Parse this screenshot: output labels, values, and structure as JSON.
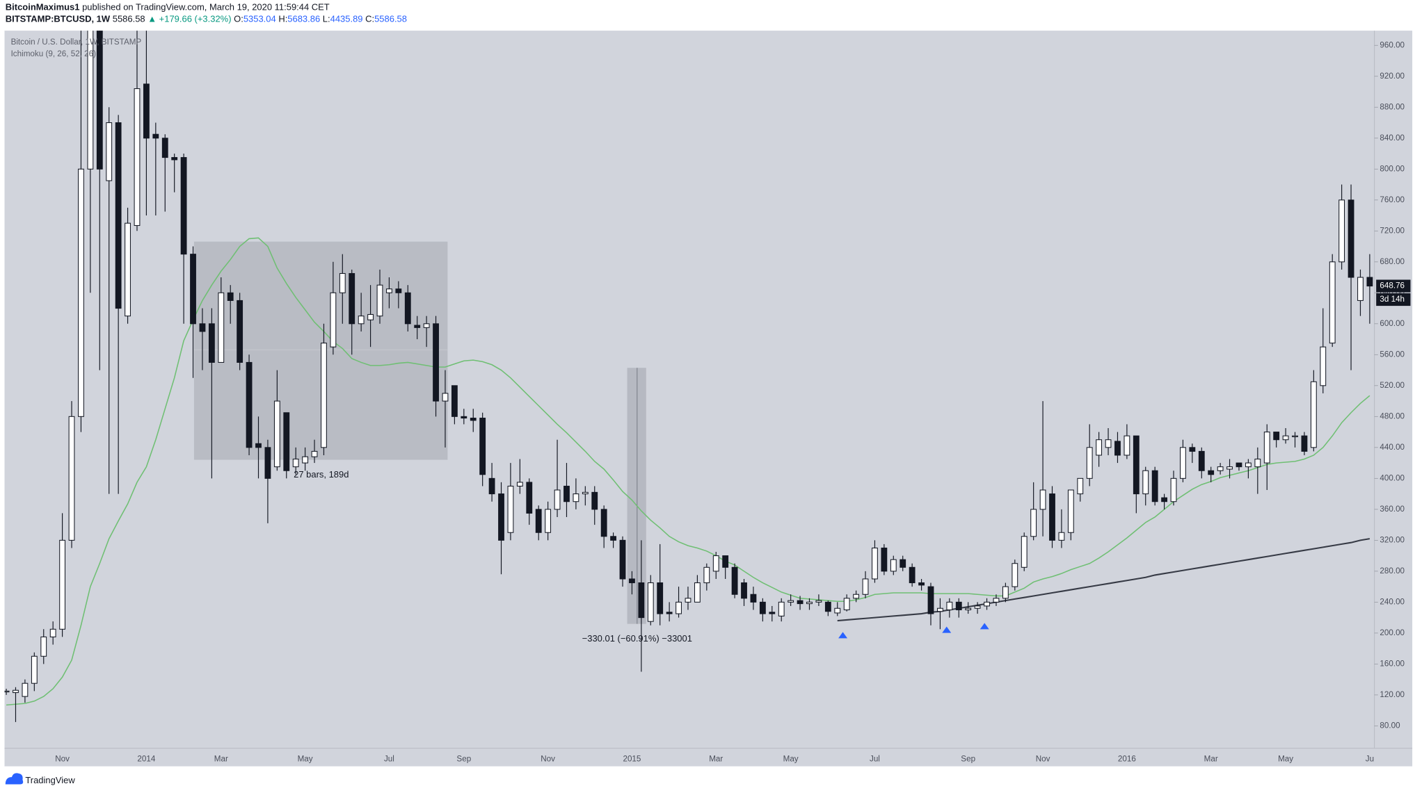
{
  "header": {
    "author": "BitcoinMaximus1",
    "published": "published on TradingView.com, March 19, 2020 11:59:44 CET",
    "symbol": "BITSTAMP:BTCUSD, 1W",
    "last": "5586.58",
    "change": "▲ +179.66 (+3.32%)",
    "o_label": "O:",
    "o": "5353.04",
    "h_label": "H:",
    "h": "5683.86",
    "l_label": "L:",
    "l": "4435.89",
    "c_label": "C:",
    "c": "5586.58"
  },
  "footer": {
    "brand": "TradingView"
  },
  "chart_data": {
    "type": "candlestick",
    "title": "Bitcoin / U.S. Dollar, 1W, BITSTAMP",
    "subtitle": "Ichimoku (9, 26, 52, 26)",
    "annotations": [
      "27 bars, 189d",
      "−330.01 (−60.91%) −33001"
    ],
    "countdown": "3d 14h",
    "up_color": "#ffffff",
    "down_color": "#131722",
    "categories": [
      null,
      null,
      null,
      null,
      null,
      null,
      "Nov",
      null,
      null,
      null,
      null,
      null,
      null,
      null,
      null,
      "2014",
      null,
      null,
      null,
      null,
      null,
      null,
      null,
      "Mar",
      null,
      null,
      null,
      null,
      null,
      null,
      null,
      null,
      "May",
      null,
      null,
      null,
      null,
      null,
      null,
      null,
      null,
      "Jul",
      null,
      null,
      null,
      null,
      null,
      null,
      null,
      "Sep",
      null,
      null,
      null,
      null,
      null,
      null,
      null,
      null,
      "Nov",
      null,
      null,
      null,
      null,
      null,
      null,
      null,
      null,
      "2015",
      null,
      null,
      null,
      null,
      null,
      null,
      null,
      null,
      "Mar",
      null,
      null,
      null,
      null,
      null,
      null,
      null,
      "May",
      null,
      null,
      null,
      null,
      null,
      null,
      null,
      null,
      "Jul",
      null,
      null,
      null,
      null,
      null,
      null,
      null,
      null,
      null,
      "Sep",
      null,
      null,
      null,
      null,
      null,
      null,
      null,
      "Nov",
      null,
      null,
      null,
      null,
      null,
      null,
      null,
      null,
      "2016",
      null,
      null,
      null,
      null,
      null,
      null,
      null,
      null,
      "Mar",
      null,
      null,
      null,
      null,
      null,
      null,
      null,
      "May",
      null,
      null,
      null,
      null,
      null,
      null,
      null,
      null,
      "Ju"
    ],
    "open": [
      125,
      123,
      118,
      135,
      170,
      195,
      205,
      320,
      480,
      800,
      1000,
      785,
      860,
      610,
      727,
      910,
      845,
      840,
      815,
      815,
      690,
      600,
      600,
      550,
      640,
      630,
      550,
      445,
      440,
      415,
      485,
      415,
      420,
      428,
      440,
      570,
      640,
      665,
      600,
      605,
      610,
      640,
      645,
      640,
      598,
      595,
      600,
      500,
      520,
      480,
      478,
      478,
      400,
      380,
      330,
      390,
      395,
      360,
      330,
      360,
      390,
      370,
      380,
      382,
      360,
      325,
      320,
      270,
      265,
      215,
      265,
      227,
      225,
      240,
      240,
      265,
      280,
      300,
      285,
      265,
      250,
      240,
      227,
      222,
      240,
      242,
      238,
      240,
      240,
      226,
      230,
      245,
      250,
      270,
      310,
      280,
      295,
      285,
      265,
      260,
      228,
      230,
      240,
      230,
      232,
      235,
      240,
      245,
      260,
      285,
      325,
      360,
      380,
      320,
      330,
      380,
      400,
      430,
      440,
      448,
      430,
      455,
      380,
      410,
      375,
      370,
      400,
      440,
      435,
      410,
      410,
      412,
      420,
      415,
      415,
      420,
      460,
      450,
      455,
      455,
      440,
      520,
      575,
      680,
      760,
      630,
      660
    ],
    "high": [
      128,
      130,
      140,
      175,
      205,
      215,
      355,
      500,
      1000,
      1150,
      1150,
      880,
      870,
      750,
      990,
      1100,
      860,
      845,
      820,
      820,
      700,
      620,
      620,
      660,
      650,
      640,
      560,
      480,
      450,
      540,
      485,
      440,
      440,
      450,
      600,
      680,
      690,
      670,
      640,
      650,
      670,
      660,
      655,
      650,
      610,
      610,
      610,
      540,
      520,
      490,
      490,
      485,
      420,
      395,
      420,
      425,
      400,
      365,
      370,
      450,
      420,
      400,
      390,
      390,
      365,
      330,
      325,
      280,
      320,
      275,
      315,
      240,
      260,
      260,
      275,
      290,
      305,
      300,
      290,
      270,
      260,
      245,
      235,
      245,
      250,
      248,
      245,
      250,
      242,
      240,
      250,
      255,
      280,
      320,
      315,
      300,
      300,
      290,
      270,
      265,
      245,
      245,
      245,
      240,
      240,
      245,
      250,
      265,
      295,
      330,
      395,
      500,
      390,
      360,
      385,
      400,
      470,
      460,
      465,
      460,
      470,
      455,
      415,
      415,
      380,
      410,
      450,
      445,
      440,
      415,
      420,
      425,
      420,
      425,
      440,
      470,
      460,
      465,
      460,
      460,
      540,
      620,
      690,
      780,
      780,
      670,
      690
    ],
    "low": [
      120,
      85,
      110,
      125,
      160,
      185,
      195,
      310,
      460,
      640,
      540,
      380,
      380,
      600,
      720,
      740,
      740,
      745,
      770,
      600,
      530,
      540,
      400,
      550,
      600,
      540,
      430,
      400,
      342,
      410,
      400,
      405,
      410,
      420,
      430,
      560,
      600,
      560,
      590,
      570,
      600,
      620,
      620,
      590,
      580,
      570,
      480,
      440,
      470,
      470,
      460,
      390,
      370,
      276,
      320,
      380,
      340,
      320,
      320,
      350,
      350,
      360,
      365,
      340,
      310,
      310,
      260,
      250,
      150,
      210,
      210,
      215,
      220,
      230,
      240,
      255,
      270,
      270,
      245,
      235,
      230,
      215,
      215,
      215,
      235,
      230,
      230,
      235,
      222,
      222,
      228,
      240,
      245,
      265,
      275,
      275,
      280,
      260,
      255,
      210,
      205,
      220,
      220,
      225,
      225,
      230,
      235,
      240,
      255,
      280,
      320,
      325,
      310,
      310,
      320,
      370,
      390,
      415,
      430,
      420,
      425,
      355,
      365,
      365,
      360,
      365,
      395,
      420,
      400,
      395,
      405,
      400,
      410,
      400,
      380,
      385,
      440,
      445,
      440,
      430,
      435,
      510,
      570,
      670,
      540,
      610,
      600
    ],
    "close": [
      125,
      126,
      135,
      170,
      195,
      205,
      320,
      480,
      800,
      980,
      800,
      860,
      620,
      730,
      904,
      840,
      840,
      815,
      812,
      690,
      600,
      590,
      550,
      640,
      630,
      550,
      440,
      440,
      400,
      500,
      410,
      425,
      428,
      435,
      575,
      640,
      665,
      600,
      610,
      612,
      650,
      645,
      640,
      600,
      595,
      600,
      500,
      510,
      480,
      478,
      475,
      405,
      380,
      320,
      390,
      395,
      355,
      330,
      360,
      385,
      370,
      380,
      382,
      360,
      325,
      320,
      270,
      265,
      220,
      265,
      225,
      225,
      240,
      245,
      265,
      285,
      300,
      285,
      250,
      245,
      240,
      225,
      225,
      240,
      242,
      238,
      240,
      242,
      228,
      232,
      245,
      250,
      270,
      310,
      280,
      295,
      285,
      265,
      262,
      225,
      232,
      240,
      230,
      232,
      235,
      240,
      245,
      260,
      290,
      325,
      360,
      385,
      320,
      330,
      385,
      400,
      440,
      450,
      450,
      430,
      455,
      380,
      410,
      370,
      370,
      400,
      440,
      435,
      410,
      405,
      415,
      415,
      415,
      420,
      425,
      460,
      450,
      455,
      455,
      435,
      525,
      570,
      680,
      760,
      660,
      660,
      648.76
    ],
    "lines": [
      {
        "color": "#6fbf73",
        "values": [
          107,
          108,
          109,
          112,
          118,
          128,
          143,
          165,
          210,
          260,
          290,
          322,
          345,
          367,
          395,
          415,
          450,
          490,
          530,
          578,
          605,
          630,
          650,
          668,
          683,
          700,
          710,
          711,
          700,
          672,
          652,
          634,
          618,
          602,
          590,
          577,
          568,
          555,
          550,
          546,
          546,
          547,
          549,
          550,
          548,
          546,
          544,
          544,
          548,
          552,
          553,
          551,
          547,
          540,
          530,
          518,
          506,
          494,
          482,
          470,
          459,
          447,
          435,
          422,
          412,
          398,
          383,
          372,
          358,
          346,
          336,
          325,
          318,
          313,
          310,
          306,
          300,
          293,
          288,
          280,
          272,
          265,
          259,
          253,
          249,
          245,
          244,
          243,
          242,
          241,
          241,
          243,
          246,
          250,
          251,
          252,
          252,
          252,
          252,
          251,
          251,
          251,
          251,
          251,
          250,
          249,
          248,
          248,
          253,
          258,
          266,
          270,
          273,
          277,
          282,
          286,
          290,
          297,
          305,
          314,
          323,
          333,
          343,
          350,
          360,
          370,
          378,
          386,
          392,
          396,
          401,
          404,
          407,
          410,
          414,
          418,
          420,
          421,
          422,
          425,
          430,
          440,
          455,
          472,
          485,
          497,
          507
        ]
      },
      {
        "color": "#363a45",
        "values": [
          null,
          null,
          null,
          null,
          null,
          null,
          null,
          null,
          null,
          null,
          null,
          null,
          null,
          null,
          null,
          null,
          null,
          null,
          null,
          null,
          null,
          null,
          null,
          null,
          null,
          null,
          null,
          null,
          null,
          null,
          null,
          null,
          null,
          null,
          null,
          null,
          null,
          null,
          null,
          null,
          null,
          null,
          null,
          null,
          null,
          null,
          null,
          null,
          null,
          null,
          null,
          null,
          null,
          null,
          null,
          null,
          null,
          null,
          null,
          null,
          null,
          null,
          null,
          null,
          null,
          null,
          null,
          null,
          null,
          null,
          null,
          null,
          null,
          null,
          null,
          null,
          null,
          null,
          null,
          null,
          null,
          null,
          null,
          null,
          null,
          null,
          null,
          null,
          null,
          216,
          217,
          218,
          219,
          220,
          221,
          222,
          223,
          224,
          225,
          227,
          228,
          230,
          232,
          234,
          236,
          238,
          240,
          242,
          244,
          246,
          248,
          250,
          252,
          254,
          256,
          258,
          260,
          262,
          264,
          266,
          268,
          270,
          272,
          275,
          277,
          279,
          281,
          283,
          285,
          287,
          289,
          291,
          293,
          295,
          297,
          299,
          301,
          303,
          305,
          307,
          309,
          311,
          313,
          315,
          317,
          320,
          322
        ]
      }
    ],
    "ylim": [
      51,
      979
    ],
    "yticks": [
      {
        "value": 80,
        "label": "80.00"
      },
      {
        "value": 120,
        "label": "120.00"
      },
      {
        "value": 160,
        "label": "160.00"
      },
      {
        "value": 200,
        "label": "200.00"
      },
      {
        "value": 240,
        "label": "240.00"
      },
      {
        "value": 280,
        "label": "280.00"
      },
      {
        "value": 320,
        "label": "320.00"
      },
      {
        "value": 360,
        "label": "360.00"
      },
      {
        "value": 400,
        "label": "400.00"
      },
      {
        "value": 440,
        "label": "440.00"
      },
      {
        "value": 480,
        "label": "480.00"
      },
      {
        "value": 520,
        "label": "520.00"
      },
      {
        "value": 560,
        "label": "560.00"
      },
      {
        "value": 600,
        "label": "600.00"
      },
      {
        "value": 640,
        "label": "640.00"
      },
      {
        "value": 680,
        "label": "680.00"
      },
      {
        "value": 720,
        "label": "720.00"
      },
      {
        "value": 760,
        "label": "760.00"
      },
      {
        "value": 800,
        "label": "800.00"
      },
      {
        "value": 840,
        "label": "840.00"
      },
      {
        "value": 880,
        "label": "880.00"
      },
      {
        "value": 920,
        "label": "920.00"
      },
      {
        "value": 960,
        "label": "960.00"
      }
    ],
    "grid": false
  }
}
